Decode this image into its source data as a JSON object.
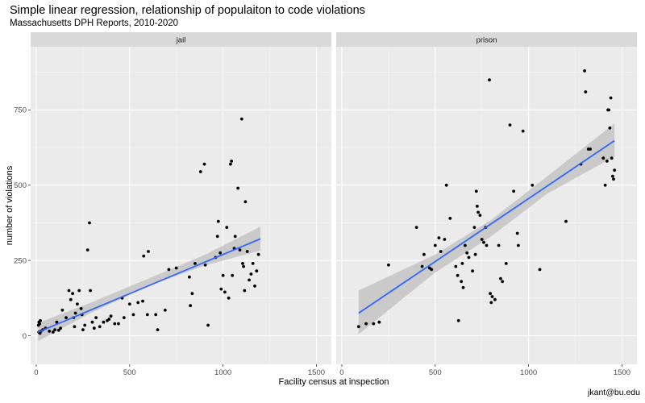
{
  "title": "Simple linear regression, relationship of populaiton to code violations",
  "subtitle": "Massachusetts DPH Reports, 2010-2020",
  "caption": "jkant@bu.edu",
  "colors": {
    "panel_bg": "#ebebeb",
    "strip_bg": "#d9d9d9",
    "grid_major": "#ffffff",
    "point": "#000000",
    "fit_line": "#3366ff",
    "ribbon": "#c4c4c4"
  },
  "chart_data": {
    "type": "scatter",
    "facet_by": "facility type",
    "xlabel": "Facility census at inspection",
    "ylabel": "number of violations",
    "xlim": [
      -30,
      1580
    ],
    "ylim": [
      -95,
      960
    ],
    "x_ticks": [
      0,
      500,
      1000,
      1500
    ],
    "x_tick_labels": [
      "0",
      "500",
      "1000",
      "1500"
    ],
    "y_ticks": [
      0,
      250,
      500,
      750
    ],
    "y_tick_labels": [
      "0",
      "250",
      "500",
      "750"
    ],
    "grid": true,
    "legend": "none",
    "panels": [
      {
        "name": "jail",
        "fit": {
          "x": [
            10,
            1200
          ],
          "y": [
            12,
            322
          ]
        },
        "ribbon": {
          "x": [
            10,
            300,
            600,
            900,
            1200
          ],
          "lower": [
            -18,
            78,
            165,
            233,
            283
          ],
          "upper": [
            42,
            112,
            190,
            268,
            362
          ]
        },
        "points": [
          [
            12,
            35
          ],
          [
            15,
            45
          ],
          [
            18,
            40
          ],
          [
            22,
            50
          ],
          [
            14,
            12
          ],
          [
            20,
            8
          ],
          [
            25,
            15
          ],
          [
            35,
            20
          ],
          [
            50,
            25
          ],
          [
            70,
            15
          ],
          [
            90,
            12
          ],
          [
            100,
            20
          ],
          [
            110,
            45
          ],
          [
            120,
            18
          ],
          [
            130,
            25
          ],
          [
            140,
            85
          ],
          [
            160,
            60
          ],
          [
            175,
            150
          ],
          [
            185,
            120
          ],
          [
            195,
            140
          ],
          [
            200,
            60
          ],
          [
            205,
            30
          ],
          [
            210,
            75
          ],
          [
            220,
            105
          ],
          [
            230,
            150
          ],
          [
            240,
            90
          ],
          [
            245,
            70
          ],
          [
            250,
            20
          ],
          [
            260,
            35
          ],
          [
            275,
            285
          ],
          [
            285,
            375
          ],
          [
            290,
            150
          ],
          [
            300,
            45
          ],
          [
            310,
            25
          ],
          [
            320,
            60
          ],
          [
            340,
            30
          ],
          [
            360,
            45
          ],
          [
            380,
            50
          ],
          [
            390,
            55
          ],
          [
            400,
            65
          ],
          [
            420,
            40
          ],
          [
            440,
            40
          ],
          [
            460,
            125
          ],
          [
            470,
            60
          ],
          [
            500,
            105
          ],
          [
            520,
            70
          ],
          [
            545,
            110
          ],
          [
            570,
            115
          ],
          [
            575,
            265
          ],
          [
            595,
            70
          ],
          [
            600,
            280
          ],
          [
            640,
            70
          ],
          [
            650,
            20
          ],
          [
            690,
            85
          ],
          [
            710,
            220
          ],
          [
            750,
            225
          ],
          [
            820,
            195
          ],
          [
            825,
            100
          ],
          [
            835,
            140
          ],
          [
            850,
            240
          ],
          [
            880,
            545
          ],
          [
            900,
            570
          ],
          [
            905,
            235
          ],
          [
            920,
            35
          ],
          [
            960,
            260
          ],
          [
            970,
            330
          ],
          [
            975,
            380
          ],
          [
            985,
            275
          ],
          [
            990,
            155
          ],
          [
            1000,
            200
          ],
          [
            1010,
            145
          ],
          [
            1020,
            360
          ],
          [
            1030,
            125
          ],
          [
            1040,
            570
          ],
          [
            1045,
            580
          ],
          [
            1050,
            200
          ],
          [
            1060,
            290
          ],
          [
            1065,
            330
          ],
          [
            1080,
            490
          ],
          [
            1090,
            285
          ],
          [
            1100,
            720
          ],
          [
            1105,
            240
          ],
          [
            1110,
            230
          ],
          [
            1115,
            150
          ],
          [
            1120,
            445
          ],
          [
            1130,
            280
          ],
          [
            1140,
            185
          ],
          [
            1150,
            205
          ],
          [
            1160,
            240
          ],
          [
            1170,
            165
          ],
          [
            1180,
            215
          ],
          [
            1190,
            270
          ]
        ]
      },
      {
        "name": "prison",
        "fit": {
          "x": [
            90,
            1460
          ],
          "y": [
            75,
            648
          ]
        },
        "ribbon": {
          "x": [
            90,
            500,
            800,
            1100,
            1460
          ],
          "lower": [
            5,
            210,
            330,
            472,
            595
          ],
          "upper": [
            150,
            270,
            385,
            530,
            705
          ]
        },
        "points": [
          [
            90,
            30
          ],
          [
            130,
            40
          ],
          [
            170,
            40
          ],
          [
            200,
            45
          ],
          [
            250,
            235
          ],
          [
            400,
            360
          ],
          [
            430,
            230
          ],
          [
            440,
            270
          ],
          [
            470,
            225
          ],
          [
            480,
            220
          ],
          [
            500,
            300
          ],
          [
            520,
            325
          ],
          [
            530,
            280
          ],
          [
            550,
            320
          ],
          [
            560,
            500
          ],
          [
            580,
            390
          ],
          [
            610,
            230
          ],
          [
            620,
            200
          ],
          [
            625,
            50
          ],
          [
            640,
            180
          ],
          [
            645,
            240
          ],
          [
            650,
            160
          ],
          [
            660,
            300
          ],
          [
            670,
            275
          ],
          [
            680,
            260
          ],
          [
            700,
            215
          ],
          [
            710,
            360
          ],
          [
            715,
            270
          ],
          [
            720,
            480
          ],
          [
            725,
            430
          ],
          [
            730,
            410
          ],
          [
            740,
            400
          ],
          [
            750,
            320
          ],
          [
            760,
            310
          ],
          [
            770,
            360
          ],
          [
            775,
            300
          ],
          [
            790,
            850
          ],
          [
            795,
            140
          ],
          [
            800,
            110
          ],
          [
            805,
            130
          ],
          [
            820,
            120
          ],
          [
            840,
            300
          ],
          [
            850,
            190
          ],
          [
            860,
            180
          ],
          [
            880,
            240
          ],
          [
            900,
            700
          ],
          [
            920,
            480
          ],
          [
            940,
            340
          ],
          [
            945,
            300
          ],
          [
            970,
            680
          ],
          [
            1020,
            500
          ],
          [
            1060,
            220
          ],
          [
            1200,
            380
          ],
          [
            1280,
            570
          ],
          [
            1300,
            880
          ],
          [
            1305,
            810
          ],
          [
            1320,
            620
          ],
          [
            1330,
            620
          ],
          [
            1400,
            590
          ],
          [
            1410,
            500
          ],
          [
            1420,
            580
          ],
          [
            1425,
            750
          ],
          [
            1430,
            750
          ],
          [
            1435,
            690
          ],
          [
            1440,
            790
          ],
          [
            1445,
            590
          ],
          [
            1450,
            530
          ],
          [
            1455,
            520
          ],
          [
            1460,
            550
          ]
        ]
      }
    ]
  }
}
